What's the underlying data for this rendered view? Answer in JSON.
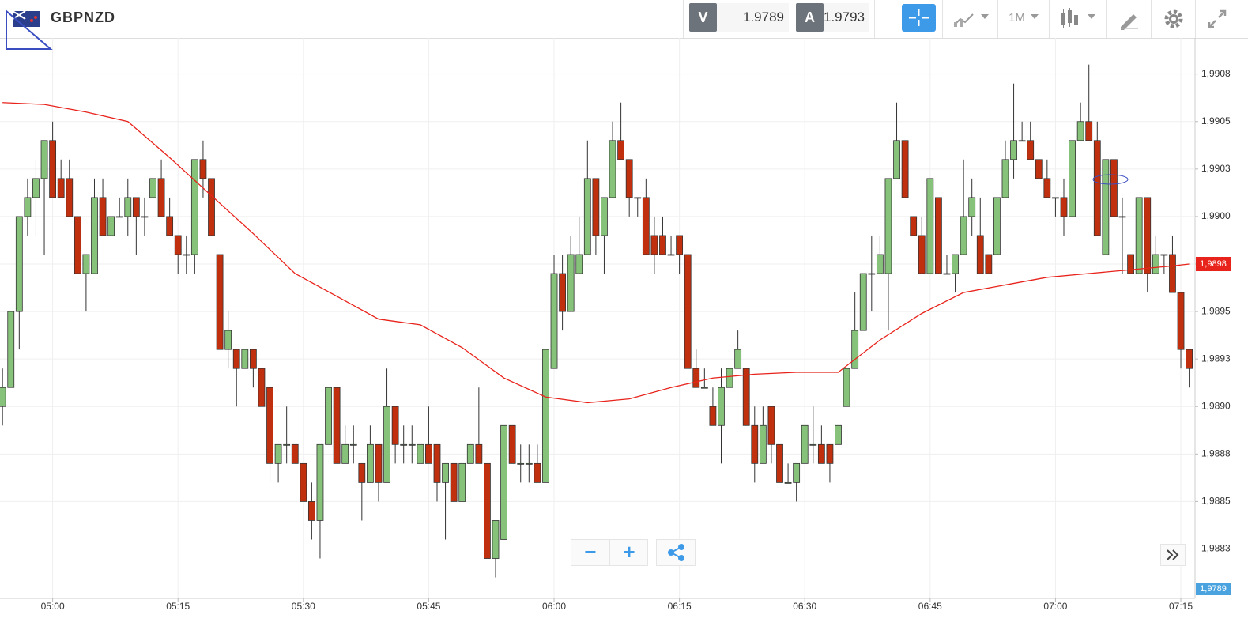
{
  "header": {
    "symbol": "GBPNZD",
    "bid": {
      "label": "V",
      "value": 1.9789
    },
    "ask": {
      "label": "A",
      "value": 1.9793
    },
    "timeframe": "1M"
  },
  "chart_data": {
    "type": "candlestick",
    "categories": [
      null,
      null,
      null,
      null,
      null,
      null,
      "05:00",
      null,
      null,
      null,
      null,
      null,
      null,
      null,
      null,
      null,
      null,
      null,
      null,
      null,
      null,
      "05:15",
      null,
      null,
      null,
      null,
      null,
      null,
      null,
      null,
      null,
      null,
      null,
      null,
      null,
      null,
      "05:30",
      null,
      null,
      null,
      null,
      null,
      null,
      null,
      null,
      null,
      null,
      null,
      null,
      null,
      null,
      "05:45",
      null,
      null,
      null,
      null,
      null,
      null,
      null,
      null,
      null,
      null,
      null,
      null,
      null,
      null,
      "06:00",
      null,
      null,
      null,
      null,
      null,
      null,
      null,
      null,
      null,
      null,
      null,
      null,
      null,
      null,
      "06:15",
      null,
      null,
      null,
      null,
      null,
      null,
      null,
      null,
      null,
      null,
      null,
      null,
      null,
      null,
      "06:30",
      null,
      null,
      null,
      null,
      null,
      null,
      null,
      null,
      null,
      null,
      null,
      null,
      null,
      null,
      "06:45",
      null,
      null,
      null,
      null,
      null,
      null,
      null,
      null,
      null,
      null,
      null,
      null,
      null,
      null,
      "07:00",
      null,
      null,
      null,
      null,
      null,
      null,
      null,
      null,
      null,
      null,
      null,
      null,
      null,
      null,
      "07:15",
      null
    ],
    "open": [
      1.989,
      1.9891,
      1.9895,
      1.99,
      1.9901,
      1.9902,
      1.9904,
      1.9902,
      1.9902,
      1.99,
      1.9897,
      1.9897,
      1.9901,
      1.9899,
      1.99,
      1.99,
      1.9901,
      1.99,
      1.9901,
      1.9902,
      1.99,
      1.9899,
      1.9898,
      1.9898,
      1.9903,
      1.9902,
      1.9898,
      1.9893,
      1.9893,
      1.9892,
      1.9893,
      1.9892,
      1.9891,
      1.9887,
      1.9888,
      1.9888,
      1.9887,
      1.9885,
      1.9884,
      1.9888,
      1.9891,
      1.9887,
      1.9888,
      1.9887,
      1.9886,
      1.9888,
      1.9886,
      1.989,
      1.9888,
      1.9888,
      1.9887,
      1.9888,
      1.9888,
      1.9886,
      1.9887,
      1.9885,
      1.9887,
      1.9888,
      1.9887,
      1.9882,
      1.9883,
      1.9889,
      1.9887,
      1.9887,
      1.9887,
      1.9886,
      1.9892,
      1.9897,
      1.9895,
      1.9897,
      1.9898,
      1.9902,
      1.9899,
      1.9901,
      1.9904,
      1.9903,
      1.9901,
      1.9901,
      1.9899,
      1.9899,
      1.9898,
      1.9899,
      1.9898,
      1.9892,
      1.9891,
      1.989,
      1.9889,
      1.9891,
      1.9892,
      1.9892,
      1.9889,
      1.9887,
      1.989,
      1.9888,
      1.9886,
      1.9886,
      1.9887,
      1.9888,
      1.9888,
      1.9888,
      1.9888,
      1.989,
      1.9892,
      1.9894,
      1.9897,
      1.9897,
      1.9897,
      1.9902,
      1.9904,
      1.99,
      1.9899,
      1.9897,
      1.9901,
      1.9897,
      1.9897,
      1.9898,
      1.99,
      1.9899,
      1.9898,
      1.9898,
      1.9901,
      1.9903,
      1.9904,
      1.9904,
      1.9903,
      1.9902,
      1.9901,
      1.9901,
      1.99,
      1.9904,
      1.9905,
      1.9904,
      1.9898,
      1.9903,
      1.99,
      1.9898,
      1.9897,
      1.9901,
      1.9897,
      1.9898,
      1.9898,
      1.9896,
      1.9893
    ],
    "high": [
      1.9892,
      1.9895,
      1.99,
      1.9902,
      1.9903,
      1.9904,
      1.9905,
      1.9903,
      1.9903,
      1.99,
      1.9898,
      1.9902,
      1.9902,
      1.99,
      1.9901,
      1.9902,
      1.9901,
      1.9901,
      1.9904,
      1.9903,
      1.9901,
      1.9899,
      1.9899,
      1.9903,
      1.9904,
      1.9902,
      1.9898,
      1.9895,
      1.9893,
      1.9893,
      1.9893,
      1.9892,
      1.9891,
      1.9888,
      1.989,
      1.9888,
      1.9887,
      1.9886,
      1.9888,
      1.9891,
      1.9891,
      1.9889,
      1.9889,
      1.9887,
      1.9889,
      1.9888,
      1.9892,
      1.989,
      1.9889,
      1.9889,
      1.9888,
      1.989,
      1.9888,
      1.9887,
      1.9887,
      1.9887,
      1.9888,
      1.9891,
      1.9887,
      1.9884,
      1.9889,
      1.9889,
      1.9888,
      1.9888,
      1.9888,
      1.9893,
      1.9898,
      1.9898,
      1.9899,
      1.99,
      1.9904,
      1.9902,
      1.9901,
      1.9905,
      1.9906,
      1.9903,
      1.9901,
      1.9902,
      1.99,
      1.99,
      1.9899,
      1.9899,
      1.9898,
      1.9893,
      1.9892,
      1.9891,
      1.9892,
      1.9892,
      1.9894,
      1.9892,
      1.989,
      1.989,
      1.989,
      1.9888,
      1.9887,
      1.9887,
      1.9889,
      1.989,
      1.9889,
      1.9888,
      1.9889,
      1.9892,
      1.9896,
      1.9897,
      1.9899,
      1.9899,
      1.9902,
      1.9906,
      1.9904,
      1.99,
      1.99,
      1.9902,
      1.9901,
      1.9898,
      1.9898,
      1.9903,
      1.9902,
      1.9901,
      1.9898,
      1.9901,
      1.9904,
      1.9907,
      1.9905,
      1.9905,
      1.9903,
      1.9903,
      1.9901,
      1.9902,
      1.9904,
      1.9906,
      1.9908,
      1.9905,
      1.9903,
      1.9903,
      1.9901,
      1.9898,
      1.9901,
      1.9901,
      1.9899,
      1.9898,
      1.9899,
      1.9896,
      1.9893
    ],
    "low": [
      1.9889,
      1.9891,
      1.9893,
      1.9899,
      1.9899,
      1.9898,
      1.9901,
      1.9901,
      1.99,
      1.9897,
      1.9895,
      1.9897,
      1.9899,
      1.9899,
      1.99,
      1.9899,
      1.9898,
      1.9899,
      1.9901,
      1.99,
      1.9899,
      1.9897,
      1.9897,
      1.9897,
      1.9901,
      1.9899,
      1.9893,
      1.9892,
      1.989,
      1.9892,
      1.9891,
      1.989,
      1.9886,
      1.9886,
      1.9887,
      1.9887,
      1.9885,
      1.9883,
      1.9882,
      1.9888,
      1.9887,
      1.9887,
      1.9887,
      1.9884,
      1.9886,
      1.9885,
      1.9886,
      1.9887,
      1.9887,
      1.9887,
      1.9887,
      1.9887,
      1.9885,
      1.9883,
      1.9885,
      1.9885,
      1.9887,
      1.9887,
      1.9882,
      1.9881,
      1.9883,
      1.9887,
      1.9886,
      1.9886,
      1.9886,
      1.9886,
      1.9892,
      1.9894,
      1.9895,
      1.9897,
      1.9898,
      1.9898,
      1.9897,
      1.9901,
      1.9903,
      1.99,
      1.99,
      1.9898,
      1.9897,
      1.9898,
      1.9898,
      1.9897,
      1.9892,
      1.9891,
      1.9891,
      1.9889,
      1.9887,
      1.9891,
      1.9892,
      1.9889,
      1.9886,
      1.9887,
      1.9887,
      1.9886,
      1.9886,
      1.9885,
      1.9887,
      1.9887,
      1.9887,
      1.9886,
      1.9888,
      1.989,
      1.9892,
      1.9894,
      1.9895,
      1.9897,
      1.9894,
      1.9902,
      1.9901,
      1.9899,
      1.9897,
      1.9897,
      1.9897,
      1.9897,
      1.9896,
      1.9898,
      1.9899,
      1.9897,
      1.9897,
      1.9898,
      1.9901,
      1.9902,
      1.9904,
      1.9903,
      1.9902,
      1.9901,
      1.99,
      1.9899,
      1.99,
      1.9904,
      1.9904,
      1.9899,
      1.9898,
      1.99,
      1.9897,
      1.9897,
      1.9897,
      1.9896,
      1.9897,
      1.9897,
      1.9896,
      1.9892,
      1.9891
    ],
    "close": [
      1.9891,
      1.9895,
      1.99,
      1.9901,
      1.9902,
      1.9904,
      1.9901,
      1.9901,
      1.99,
      1.9897,
      1.9898,
      1.9901,
      1.9899,
      1.99,
      1.99,
      1.9901,
      1.99,
      1.99,
      1.9902,
      1.99,
      1.9899,
      1.9898,
      1.9898,
      1.9903,
      1.9902,
      1.9899,
      1.9893,
      1.9894,
      1.9892,
      1.9893,
      1.9892,
      1.989,
      1.9887,
      1.9888,
      1.9888,
      1.9887,
      1.9885,
      1.9884,
      1.9888,
      1.9891,
      1.9887,
      1.9888,
      1.9888,
      1.9886,
      1.9888,
      1.9886,
      1.989,
      1.9888,
      1.9888,
      1.9888,
      1.9888,
      1.9887,
      1.9886,
      1.9887,
      1.9885,
      1.9887,
      1.9888,
      1.9887,
      1.9882,
      1.9884,
      1.9889,
      1.9887,
      1.9887,
      1.9887,
      1.9886,
      1.9893,
      1.9897,
      1.9895,
      1.9898,
      1.9898,
      1.9902,
      1.9899,
      1.9901,
      1.9904,
      1.9903,
      1.9901,
      1.9901,
      1.9898,
      1.9898,
      1.9898,
      1.9898,
      1.9898,
      1.9892,
      1.9891,
      1.9891,
      1.9889,
      1.9891,
      1.9892,
      1.9893,
      1.9889,
      1.9887,
      1.9889,
      1.9888,
      1.9886,
      1.9886,
      1.9887,
      1.9889,
      1.9888,
      1.9887,
      1.9887,
      1.9889,
      1.9892,
      1.9894,
      1.9897,
      1.9897,
      1.9898,
      1.9902,
      1.9904,
      1.9901,
      1.9899,
      1.9897,
      1.9902,
      1.9897,
      1.9897,
      1.9898,
      1.99,
      1.9901,
      1.9897,
      1.9897,
      1.9901,
      1.9903,
      1.9904,
      1.9904,
      1.9903,
      1.9902,
      1.9901,
      1.9901,
      1.99,
      1.9904,
      1.9905,
      1.9904,
      1.9899,
      1.9903,
      1.99,
      1.99,
      1.9897,
      1.9901,
      1.9897,
      1.9898,
      1.9898,
      1.9896,
      1.9893,
      1.9892
    ],
    "colors": {
      "up": "#86c27a",
      "down": "#c0300f"
    },
    "ma": {
      "color": "#e8231b",
      "x": [
        0,
        5,
        10,
        15,
        20,
        25,
        30,
        35,
        40,
        45,
        50,
        55,
        60,
        65,
        70,
        75,
        80,
        85,
        90,
        95,
        100,
        105,
        110,
        115,
        120,
        125,
        130,
        135,
        140,
        142
      ],
      "values": [
        1.9906,
        1.99059,
        1.99055,
        1.9905,
        1.99031,
        1.99011,
        1.98991,
        1.9897,
        1.98958,
        1.98946,
        1.98943,
        1.98931,
        1.98915,
        1.98905,
        1.98902,
        1.98904,
        1.9891,
        1.98915,
        1.98917,
        1.98918,
        1.98918,
        1.98935,
        1.98949,
        1.9896,
        1.98964,
        1.98968,
        1.9897,
        1.98972,
        1.98974,
        1.98975
      ]
    },
    "ylim": [
      1.98799,
      1.99094
    ],
    "yticks": [
      {
        "value": 1.99075,
        "label": "1,9908"
      },
      {
        "value": 1.9905,
        "label": "1,9905"
      },
      {
        "value": 1.99025,
        "label": "1,9903"
      },
      {
        "value": 1.99,
        "label": "1,9900"
      },
      {
        "value": 1.98975,
        "label": "1,9898"
      },
      {
        "value": 1.9895,
        "label": "1,9895"
      },
      {
        "value": 1.98925,
        "label": "1,9893"
      },
      {
        "value": 1.989,
        "label": "1,9890"
      },
      {
        "value": 1.98875,
        "label": "1,9888"
      },
      {
        "value": 1.9885,
        "label": "1,9885"
      },
      {
        "value": 1.98825,
        "label": "1,9883"
      }
    ],
    "grid": true,
    "last_marker": {
      "value": 1.98975,
      "label": "1,9898"
    },
    "bid_marker": "1,9789"
  }
}
